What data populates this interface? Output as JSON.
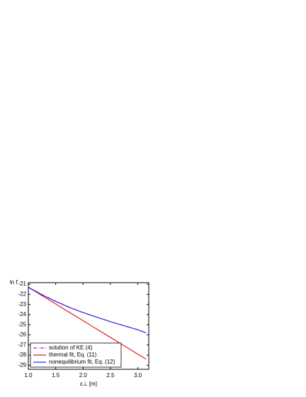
{
  "chart_data": {
    "type": "line",
    "ylabel": "ln f",
    "xlabel": "ε⊥ [m]",
    "x": [
      1.0,
      1.25,
      1.5,
      1.75,
      2.0,
      2.25,
      2.5,
      2.75,
      3.0,
      3.15
    ],
    "series": [
      {
        "name": "solution of KE (4)",
        "color": "#e000e0",
        "dash": "dashdot",
        "values": [
          -21.3,
          -22.02,
          -22.68,
          -23.28,
          -23.8,
          -24.26,
          -24.7,
          -25.1,
          -25.5,
          -25.8
        ]
      },
      {
        "name": "thermal fit, Eq. (11)",
        "color": "#e02020",
        "dash": "solid",
        "values": [
          -21.3,
          -22.13,
          -22.95,
          -23.78,
          -24.6,
          -25.43,
          -26.25,
          -27.08,
          -27.9,
          -28.4
        ]
      },
      {
        "name": "nonequilibrium fit, Eq. (12)",
        "color": "#3030e0",
        "dash": "solid",
        "values": [
          -21.3,
          -22.05,
          -22.7,
          -23.3,
          -23.8,
          -24.25,
          -24.7,
          -25.1,
          -25.5,
          -25.8
        ]
      }
    ],
    "xlim": [
      1.0,
      3.2
    ],
    "ylim": [
      -29.4,
      -20.85
    ],
    "xticks": [
      {
        "value": 1.0,
        "label": "1.0"
      },
      {
        "value": 1.5,
        "label": "1.5"
      },
      {
        "value": 2.0,
        "label": "2.0"
      },
      {
        "value": 2.5,
        "label": "2.5"
      },
      {
        "value": 3.0,
        "label": "3.0"
      }
    ],
    "yticks": [
      -21,
      -22,
      -23,
      -24,
      -25,
      -26,
      -27,
      -28,
      -29
    ],
    "legend": "lower left"
  }
}
